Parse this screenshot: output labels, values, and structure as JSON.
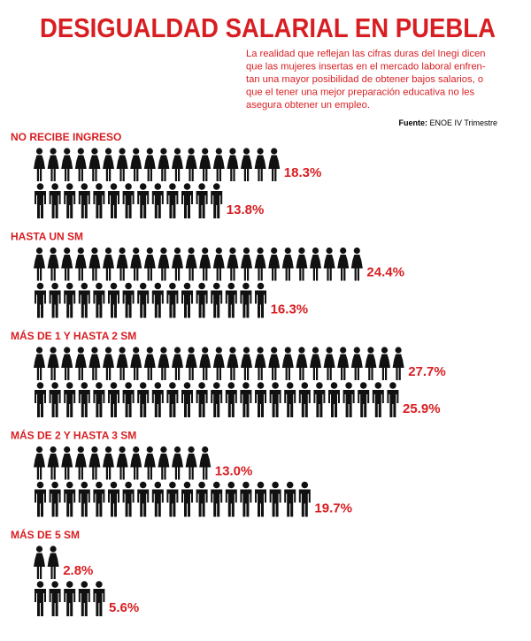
{
  "chart_data": {
    "type": "pictogram",
    "title": "DESIGUALDAD SALARIAL EN PUEBLA",
    "subtitle": [
      "La realidad que reflejan las cifras duras del Inegi dicen",
      "que las mujeres insertas en el mercado laboral enfren-",
      "tan una mayor posibilidad de obtener bajos salarios, o",
      "que el tener una mejor preparación educativa no les",
      "asegura obtener un empleo."
    ],
    "source_label": "Fuente:",
    "source": "ENOE IV Trimestre",
    "categories": [
      "NO RECIBE INGRESO",
      "HASTA UN SM",
      "MÁS DE 1 Y HASTA 2 SM",
      "MÁS DE 2 Y HASTA 3 SM",
      "MÁS DE 5 SM"
    ],
    "label_color": "#d81e22",
    "series": [
      {
        "icon": "woman",
        "color": "#111111",
        "values": [
          18.3,
          24.4,
          27.7,
          13.0,
          2.8
        ],
        "value_labels": [
          "18.3%",
          "24.4%",
          "27.7%",
          "13.0%",
          "2.8%"
        ]
      },
      {
        "icon": "man",
        "color": "#111111",
        "values": [
          13.8,
          16.3,
          25.9,
          19.7,
          5.6
        ],
        "value_labels": [
          "13.8%",
          "16.3%",
          "25.9%",
          "19.7%",
          "5.6%"
        ]
      }
    ]
  }
}
